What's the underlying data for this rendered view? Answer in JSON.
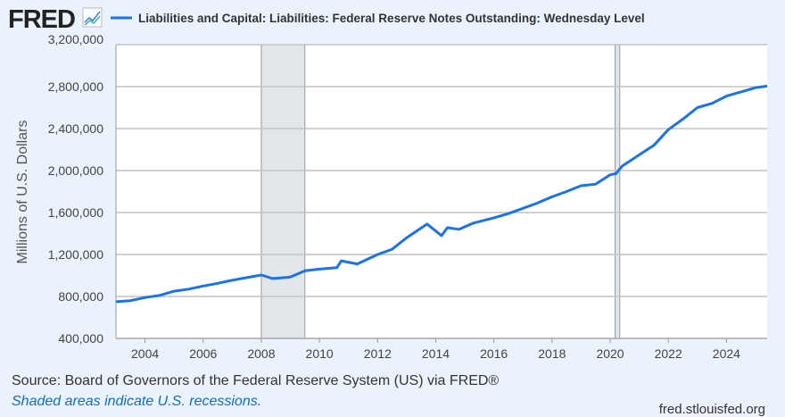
{
  "header": {
    "logo": "FRED",
    "logo_icon": "line-chart-icon",
    "legend_label": "Liabilities and Capital: Liabilities: Federal Reserve Notes Outstanding: Wednesday Level"
  },
  "footer": {
    "source": "Source: Board of Governors of the Federal Reserve System (US) via FRED®",
    "shading_note": "Shaded areas indicate U.S. recessions.",
    "site": "fred.stlouisfed.org"
  },
  "chart_data": {
    "type": "line",
    "title": "",
    "xlabel": "",
    "ylabel": "Millions of U.S. Dollars",
    "xlim": [
      2003.0,
      2025.4
    ],
    "ylim": [
      400000,
      3200000
    ],
    "x_ticks": [
      "2004",
      "2006",
      "2008",
      "2010",
      "2012",
      "2014",
      "2016",
      "2018",
      "2020",
      "2022",
      "2024"
    ],
    "y_ticks": [
      "400,000",
      "800,000",
      "1,200,000",
      "1,600,000",
      "2,000,000",
      "2,400,000",
      "2,800,000",
      "3,200,000"
    ],
    "grid": true,
    "line_color": "#1a73e8",
    "recession_color": "#e1e6eb",
    "recessions": [
      [
        2008.0,
        2009.5
      ],
      [
        2020.17,
        2020.33
      ]
    ],
    "series": [
      {
        "name": "Liabilities and Capital: Liabilities: Federal Reserve Notes Outstanding: Wednesday Level",
        "x": [
          2003.0,
          2003.5,
          2004.0,
          2004.5,
          2005.0,
          2005.5,
          2006.0,
          2006.5,
          2007.0,
          2007.5,
          2008.0,
          2008.4,
          2009.0,
          2009.5,
          2010.0,
          2010.6,
          2010.75,
          2011.3,
          2012.0,
          2012.5,
          2013.0,
          2013.7,
          2014.2,
          2014.4,
          2014.8,
          2015.3,
          2016.0,
          2016.5,
          2017.0,
          2017.5,
          2018.0,
          2018.5,
          2019.0,
          2019.5,
          2020.0,
          2020.2,
          2020.4,
          2021.0,
          2021.5,
          2022.0,
          2022.5,
          2023.0,
          2023.5,
          2024.0,
          2024.5,
          2025.0,
          2025.4
        ],
        "y": [
          750000,
          760000,
          790000,
          810000,
          850000,
          870000,
          900000,
          925000,
          955000,
          980000,
          1004000,
          970000,
          985000,
          1045000,
          1060000,
          1075000,
          1140000,
          1110000,
          1200000,
          1250000,
          1360000,
          1490000,
          1380000,
          1455000,
          1440000,
          1500000,
          1550000,
          1590000,
          1640000,
          1690000,
          1750000,
          1800000,
          1855000,
          1870000,
          1960000,
          1970000,
          2040000,
          2150000,
          2240000,
          2390000,
          2490000,
          2600000,
          2640000,
          2710000,
          2750000,
          2790000,
          2805000
        ]
      }
    ]
  }
}
